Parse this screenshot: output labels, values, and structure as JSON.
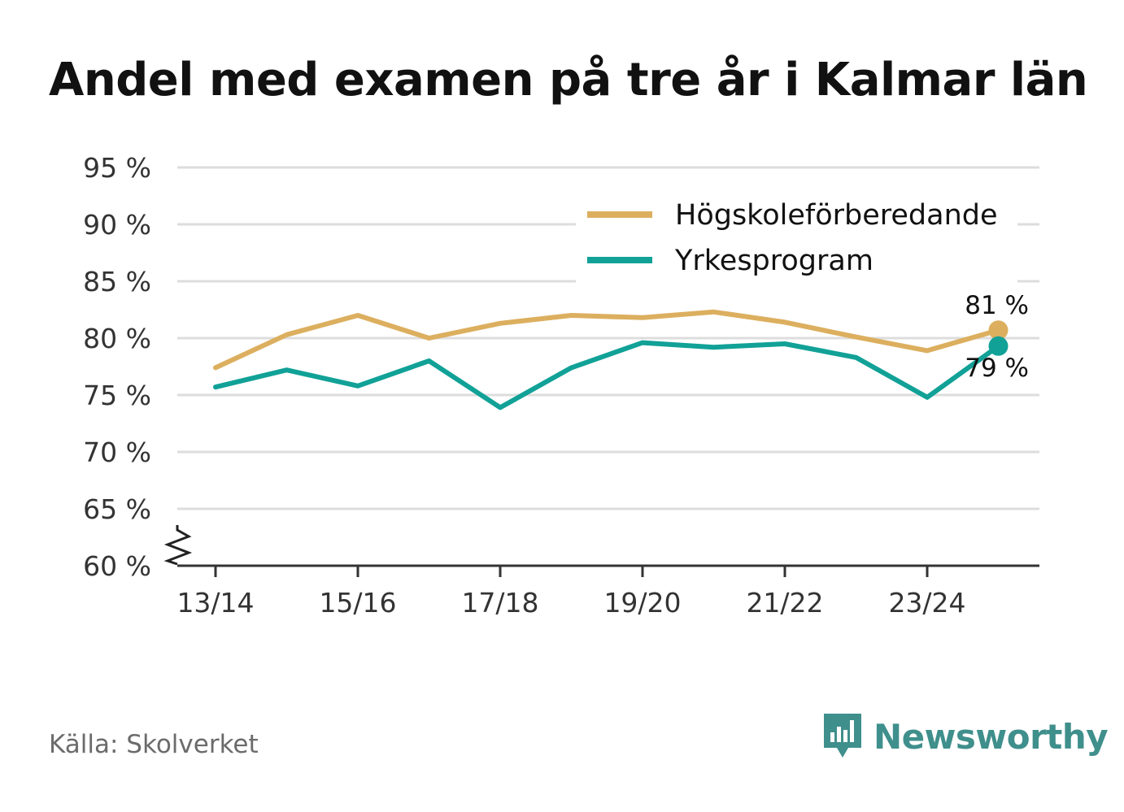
{
  "chart_data": {
    "type": "line",
    "title": "Andel med examen på tre år i Kalmar län",
    "categories": [
      "13/14",
      "14/15",
      "15/16",
      "16/17",
      "17/18",
      "18/19",
      "19/20",
      "20/21",
      "21/22",
      "22/23",
      "23/24",
      "24/25"
    ],
    "x_tick_labels": [
      "13/14",
      "15/16",
      "17/18",
      "19/20",
      "21/22",
      "23/24"
    ],
    "y_tick_labels": [
      "60 %",
      "65 %",
      "70 %",
      "75 %",
      "80 %",
      "85 %",
      "90 %",
      "95 %"
    ],
    "ylim": [
      60,
      95
    ],
    "y_ticks": [
      60,
      65,
      70,
      75,
      80,
      85,
      90,
      95
    ],
    "axis_break": true,
    "grid": true,
    "legend_position": "top-right",
    "series": [
      {
        "name": "Högskoleförberedande",
        "color": "#dcaf5f",
        "values": [
          77.4,
          80.3,
          82.0,
          80.0,
          81.3,
          82.0,
          81.8,
          82.3,
          81.4,
          80.1,
          78.9,
          80.7
        ],
        "end_label": "81 %"
      },
      {
        "name": "Yrkesprogram",
        "color": "#11a197",
        "values": [
          75.7,
          77.2,
          75.8,
          78.0,
          73.9,
          77.4,
          79.6,
          79.2,
          79.5,
          78.3,
          74.8,
          79.3
        ],
        "end_label": "79 %"
      }
    ]
  },
  "footer": {
    "source": "Källa: Skolverket",
    "brand": "Newsworthy",
    "brand_icon": "newsworthy-logo-icon"
  }
}
